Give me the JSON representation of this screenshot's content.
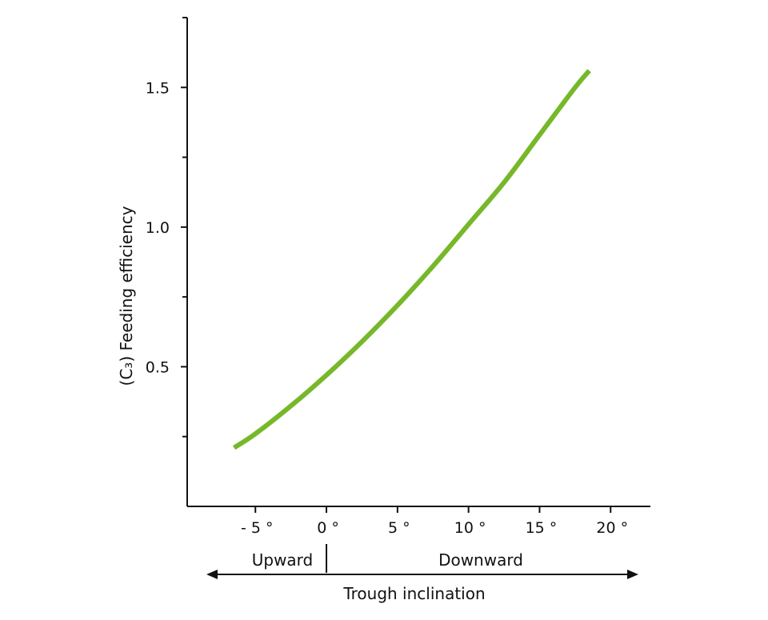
{
  "chart_data": {
    "type": "line",
    "ylabel": "(C₃) Feeding efficiency",
    "xlabel": "Trough inclination",
    "xlim": [
      -9.8,
      22.8
    ],
    "ylim": [
      0,
      1.75
    ],
    "x_ticks": [
      {
        "value": -5,
        "label": "- 5 °"
      },
      {
        "value": 0,
        "label": "0 °"
      },
      {
        "value": 5,
        "label": "5 °"
      },
      {
        "value": 10,
        "label": "10 °"
      },
      {
        "value": 15,
        "label": "15 °"
      },
      {
        "value": 20,
        "label": "20 °"
      }
    ],
    "y_ticks_major": [
      {
        "value": 0.5,
        "label": "0.5"
      },
      {
        "value": 1.0,
        "label": "1.0"
      },
      {
        "value": 1.5,
        "label": "1.5"
      }
    ],
    "y_ticks_minor": [
      0.25,
      0.75,
      1.25
    ],
    "direction_labels": {
      "left": "Upward",
      "right": "Downward",
      "divider_at": 0
    },
    "grid": false,
    "line_color": "#76b82a",
    "series": [
      {
        "x": [
          -6.5,
          -5,
          -2.5,
          0,
          2.5,
          5,
          7.5,
          10,
          12.5,
          15,
          17.5,
          18.5
        ],
        "y": [
          0.21,
          0.26,
          0.36,
          0.47,
          0.59,
          0.72,
          0.86,
          1.01,
          1.16,
          1.33,
          1.5,
          1.56
        ]
      }
    ]
  }
}
